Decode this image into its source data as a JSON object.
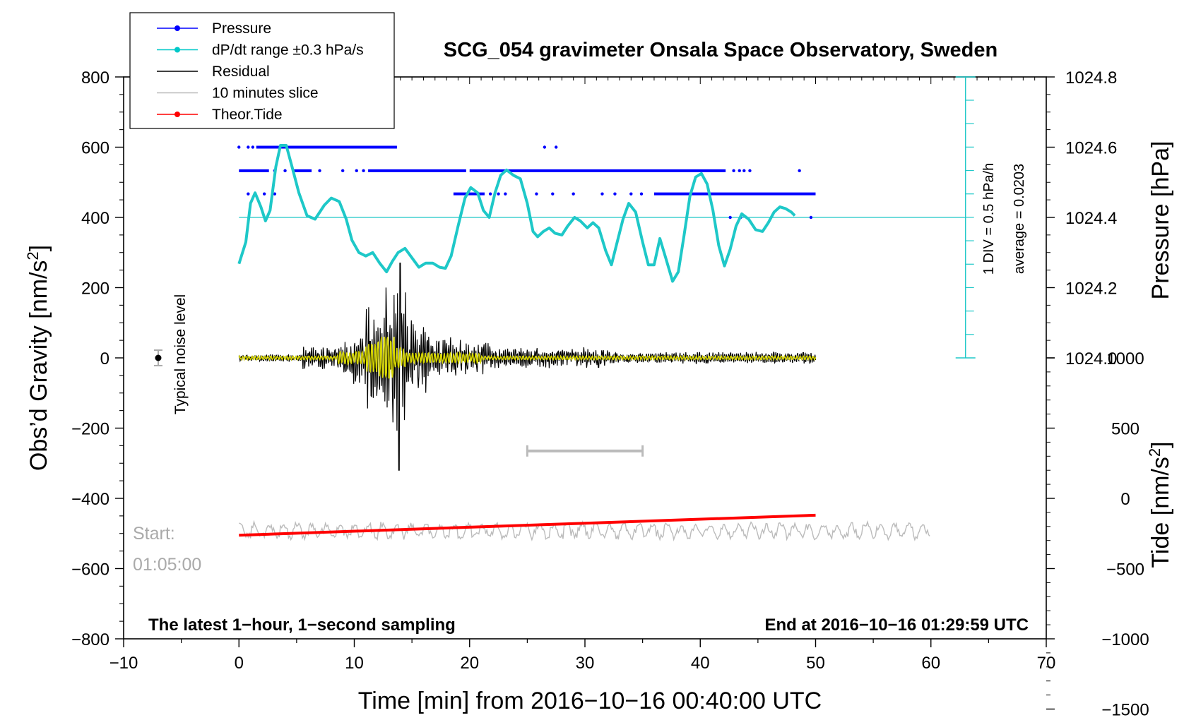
{
  "chart_data": {
    "type": "line",
    "title": "SCG_054 gravimeter Onsala Space Observatory, Sweden",
    "xlabel": "Time [min] from 2016−10−16 00:40:00 UTC",
    "ylabel_left": "Obs’d Gravity [nm/s",
    "ylabel_left_sup": "2",
    "ylabel_left_end": "]",
    "ylabel_right_top": "Pressure [hPa]",
    "ylabel_right_bottom": "Tide [nm/s",
    "ylabel_right_bottom_sup": "2",
    "ylabel_right_bottom_end": "]",
    "xlim": [
      -10,
      70
    ],
    "ylim_gravity": [
      -800,
      800
    ],
    "x_ticks": [
      "−10",
      "0",
      "10",
      "20",
      "30",
      "40",
      "50",
      "60",
      "70"
    ],
    "y_left_ticks": [
      "800",
      "600",
      "400",
      "200",
      "0",
      "−200",
      "−400",
      "−600",
      "−800"
    ],
    "pressure_axis": {
      "ticks": [
        "1024.8",
        "1024.6",
        "1024.4",
        "1024.2",
        "1024.0"
      ],
      "tick_values": [
        1024.8,
        1024.6,
        1024.4,
        1024.2,
        1024.0
      ],
      "ref": {
        "pressure": 1024.4,
        "gravity": 400
      },
      "gravity_per_hpa": 1000
    },
    "tide_axis": {
      "ticks": [
        "1000",
        "500",
        "0",
        "−500",
        "−1000",
        "−1500"
      ],
      "tick_values": [
        1000,
        500,
        0,
        -500,
        -1000,
        -1500
      ],
      "ref": {
        "tide": 0,
        "gravity": -400
      },
      "gravity_per_tide": 0.4
    },
    "legend": [
      {
        "label": "Pressure",
        "color": "#0000ff",
        "marker": true
      },
      {
        "label": "dP/dt range ±0.3 hPa/s",
        "color": "#00c8c8",
        "marker": true
      },
      {
        "label": "Residual",
        "color": "#000000",
        "marker": false
      },
      {
        "label": "10 minutes slice",
        "color": "#bbbbbb",
        "marker": false
      },
      {
        "label": "Theor.Tide",
        "color": "#ff0000",
        "marker": true
      }
    ],
    "colors": {
      "pressure": "#0000ff",
      "dpdt": "#1ec8c8",
      "residual": "#000000",
      "filtered": "#d6d600",
      "slice": "#bbbbbb",
      "tide": "#ff0000"
    },
    "annotations": {
      "noise_label": "Typical noise level",
      "start_label": "Start:",
      "start_time": "01:05:00",
      "footer_left": "The latest 1−hour, 1−second sampling",
      "footer_right": "End at 2016−10−16 01:29:59 UTC",
      "scale_div": "1 DIV = 0.5 hPa/h",
      "scale_avg": "average = 0.0203"
    },
    "series": [
      {
        "name": "dP/dt range ±0.3 hPa/s",
        "x": [
          0,
          0.6,
          1.0,
          1.4,
          1.9,
          2.3,
          2.7,
          3.2,
          3.6,
          4.1,
          4.6,
          5.2,
          5.9,
          6.6,
          7.4,
          8.0,
          8.7,
          9.3,
          9.8,
          10.4,
          11.0,
          11.6,
          12.2,
          12.8,
          13.3,
          13.8,
          14.4,
          15.0,
          15.6,
          16.2,
          16.8,
          17.4,
          17.9,
          18.4,
          19.0,
          19.6,
          20.1,
          20.7,
          21.2,
          21.7,
          22.2,
          22.7,
          23.2,
          23.8,
          24.4,
          25.0,
          25.5,
          25.9,
          26.4,
          26.9,
          27.4,
          28.0,
          28.5,
          29.1,
          29.6,
          30.2,
          30.7,
          31.2,
          31.8,
          32.3,
          32.8,
          33.3,
          33.8,
          34.4,
          35.0,
          35.5,
          36.0,
          36.5,
          37.0,
          37.6,
          38.1,
          38.6,
          39.1,
          39.6,
          40.1,
          40.6,
          41.1,
          41.6,
          42.1,
          42.6,
          43.1,
          43.6,
          44.2,
          44.8,
          45.4,
          45.9,
          46.4,
          46.9,
          47.4,
          47.9,
          48.2
        ],
        "y": [
          268,
          330,
          440,
          470,
          430,
          390,
          420,
          545,
          605,
          605,
          545,
          470,
          405,
          395,
          435,
          455,
          445,
          395,
          335,
          300,
          290,
          300,
          270,
          245,
          275,
          300,
          312,
          285,
          258,
          270,
          270,
          258,
          255,
          290,
          375,
          455,
          485,
          470,
          420,
          400,
          470,
          520,
          535,
          520,
          510,
          440,
          360,
          345,
          360,
          370,
          355,
          350,
          375,
          400,
          390,
          370,
          385,
          370,
          305,
          265,
          330,
          395,
          440,
          415,
          330,
          265,
          265,
          340,
          285,
          218,
          245,
          350,
          460,
          515,
          525,
          495,
          420,
          320,
          262,
          310,
          375,
          410,
          395,
          365,
          360,
          385,
          415,
          430,
          425,
          415,
          405
        ]
      },
      {
        "name": "Theor.Tide",
        "x": [
          0,
          50
        ],
        "y": [
          -505,
          -448
        ]
      },
      {
        "name": "Pressure",
        "rows": [
          {
            "y": 600,
            "segments": [
              [
                1.5,
                13.7
              ]
            ],
            "dots": [
              0,
              0.8,
              1.2,
              26.5,
              27.5
            ]
          },
          {
            "y": 533,
            "segments": [
              [
                0,
                2.6
              ],
              [
                4.6,
                6.3
              ],
              [
                11.2,
                19.7
              ],
              [
                20.0,
                42.2
              ]
            ],
            "dots": [
              3.1,
              4.0,
              7.0,
              9.0,
              10.2,
              10.8,
              42.9,
              43.4,
              43.8,
              44.3,
              48.6
            ]
          },
          {
            "y": 467,
            "segments": [
              [
                18.6,
                21.3
              ],
              [
                36.0,
                50.0
              ]
            ],
            "dots": [
              0.8,
              2.2,
              3.1,
              21.8,
              22.5,
              23.1,
              25.8,
              27.2,
              29.0,
              31.5,
              32.6,
              34.0,
              34.9
            ]
          },
          {
            "y": 400,
            "segments": [],
            "dots": [
              42.6,
              43.5,
              49.6
            ]
          }
        ]
      }
    ]
  }
}
